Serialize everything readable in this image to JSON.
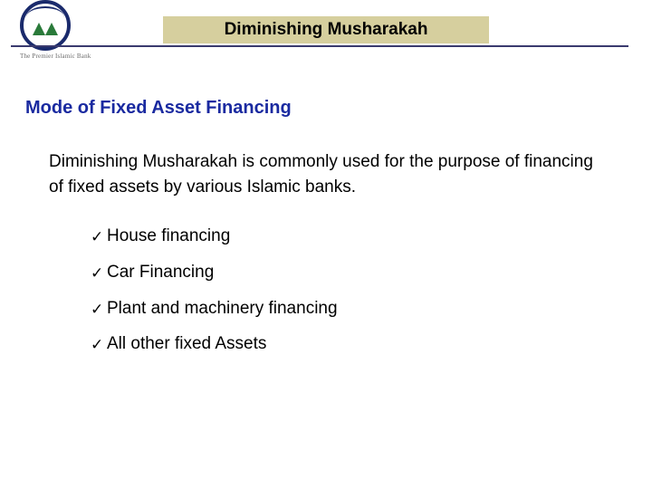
{
  "header": {
    "logo": {
      "caption": "The Premier Islamic Bank",
      "ring_color": "#1a2a6c",
      "tree_color": "#2a7a3a"
    },
    "title": "Diminishing Musharakah",
    "title_bg": "#d6cf9e",
    "rule_color": "#3a3a6e"
  },
  "section": {
    "heading": "Mode of Fixed Asset Financing",
    "heading_color": "#1a2aa0",
    "paragraph": "Diminishing Musharakah is commonly used for the purpose of financing of fixed assets by various Islamic banks.",
    "items": [
      "House financing",
      "Car Financing",
      "Plant and machinery financing",
      "All other fixed Assets"
    ],
    "bullet_glyph": "✓"
  },
  "typography": {
    "body_fontsize": 19,
    "heading_fontsize": 20
  }
}
